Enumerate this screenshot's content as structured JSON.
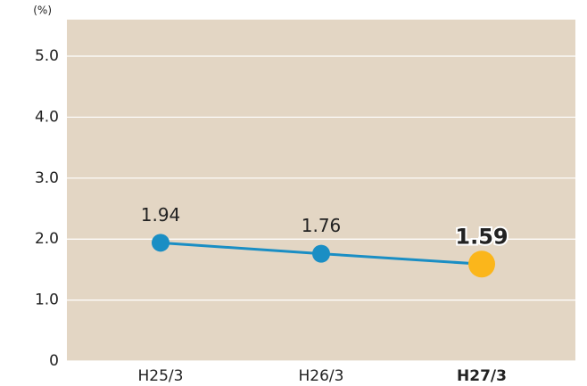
{
  "chart_data": {
    "type": "line",
    "y_unit": "(%)",
    "categories": [
      "H25/3",
      "H26/3",
      "H27/3"
    ],
    "series": [
      {
        "color": "#1a8ec4",
        "values": [
          1.94,
          1.76,
          1.59
        ]
      }
    ],
    "marker_colors": [
      "#1a8ec4",
      "#1a8ec4",
      "#fbb61b"
    ],
    "ylim": [
      0,
      5.6
    ],
    "yticks": [
      0,
      {
        "value": 1,
        "label": "1.0"
      },
      {
        "value": 2,
        "label": "2.0"
      },
      {
        "value": 3,
        "label": "3.0"
      },
      {
        "value": 4,
        "label": "4.0"
      },
      {
        "value": 5,
        "label": "5.0"
      }
    ],
    "grid": true,
    "background": "#e3d6c4"
  }
}
